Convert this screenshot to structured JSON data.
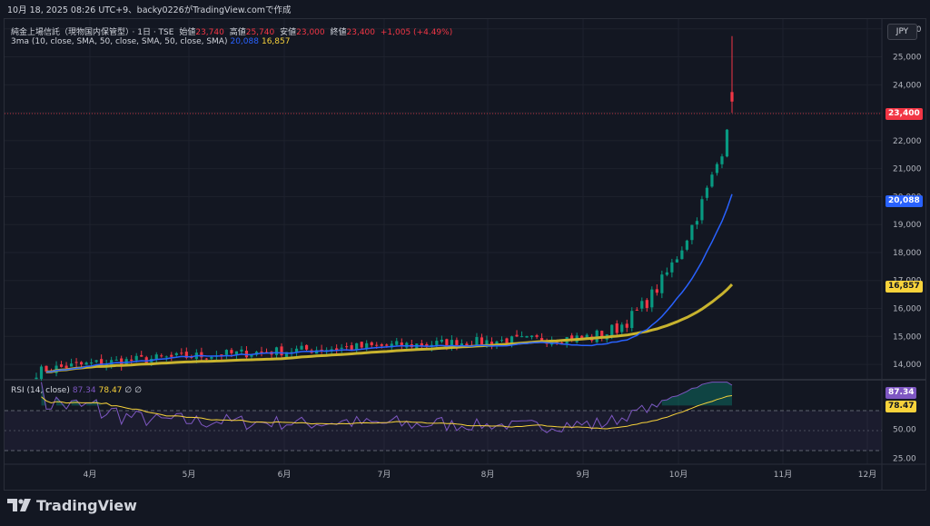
{
  "header": {
    "caption": "10月 18, 2025 08:26 UTC+9、backy0226がTradingView.comで作成"
  },
  "legend": {
    "symbol": "純金上場信託（現物国内保管型）",
    "interval": "· 1日 · TSE",
    "open_label": "始値",
    "open": "23,740",
    "high_label": "高値",
    "high": "25,740",
    "low_label": "安値",
    "low": "23,000",
    "close_label": "終値",
    "close": "23,400",
    "change": "+1,005 (+4.49%)",
    "ma_label": "3ma (10, close, SMA, 50, close, SMA, 50, close, SMA)",
    "ma_fast": "20,088",
    "ma_slow": "16,857",
    "rsi_label": "RSI (14, close)",
    "rsi_value": "87.34",
    "rsi_ma_value": "78.47",
    "eye_icon": "∅",
    "settings_icon": "∅"
  },
  "currency_button": "JPY",
  "price_tags": {
    "last": "23,400",
    "ma_fast": "20,088",
    "ma_slow": "16,857",
    "rsi": "87.34",
    "rsi_ma": "78.47"
  },
  "brand": "TradingView",
  "colors": {
    "up": "#089981",
    "down": "#f23645",
    "ma_fast": "#2962ff",
    "ma_slow": "#c8b32e",
    "rsi": "#7e57c2",
    "rsi_ma": "#f7d23b",
    "background": "#131722"
  },
  "chart_data": {
    "type": "candlestick",
    "title": "純金上場信託（現物国内保管型）",
    "price_axis": {
      "ticks": [
        "26,000",
        "25,000",
        "24,000",
        "23,000",
        "22,000",
        "21,000",
        "20,000",
        "19,000",
        "18,000",
        "17,000",
        "16,000",
        "15,000",
        "14,000"
      ],
      "range": [
        13450,
        26350
      ]
    },
    "time_axis": {
      "ticks": [
        "4月",
        "5月",
        "6月",
        "7月",
        "8月",
        "9月",
        "10月",
        "11月",
        "12月"
      ]
    },
    "rsi_axis": {
      "ticks": [
        "50.00",
        "25.00"
      ],
      "bands": [
        70,
        30
      ],
      "range": [
        20,
        92
      ]
    },
    "last_price": 23400,
    "ma_fast_last": 20088,
    "ma_slow_last": 16857,
    "rsi_last": 87.34,
    "rsi_ma_last": 78.47
  }
}
